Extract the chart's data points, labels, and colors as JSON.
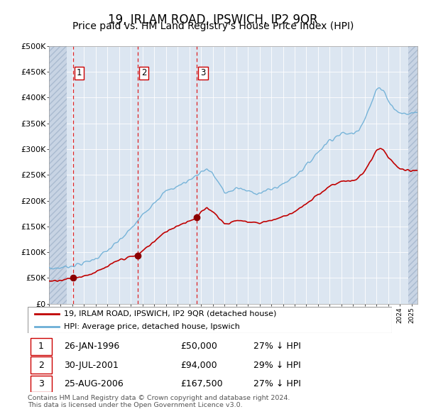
{
  "title": "19, IRLAM ROAD, IPSWICH, IP2 9QR",
  "subtitle": "Price paid vs. HM Land Registry's House Price Index (HPI)",
  "title_fontsize": 12,
  "subtitle_fontsize": 10,
  "ylim": [
    0,
    500000
  ],
  "yticks": [
    0,
    50000,
    100000,
    150000,
    200000,
    250000,
    300000,
    350000,
    400000,
    450000,
    500000
  ],
  "ytick_labels": [
    "£0",
    "£50K",
    "£100K",
    "£150K",
    "£200K",
    "£250K",
    "£300K",
    "£350K",
    "£400K",
    "£450K",
    "£500K"
  ],
  "hpi_color": "#6baed6",
  "price_color": "#c00000",
  "marker_color": "#8b0000",
  "background_color": "#dce6f1",
  "legend_label_price": "19, IRLAM ROAD, IPSWICH, IP2 9QR (detached house)",
  "legend_label_hpi": "HPI: Average price, detached house, Ipswich",
  "transactions": [
    {
      "num": 1,
      "date_label": "26-JAN-1996",
      "price": 50000,
      "pct": "27% ↓ HPI",
      "year": 1996.07
    },
    {
      "num": 2,
      "date_label": "30-JUL-2001",
      "price": 94000,
      "pct": "29% ↓ HPI",
      "year": 2001.58
    },
    {
      "num": 3,
      "date_label": "25-AUG-2006",
      "price": 167500,
      "pct": "27% ↓ HPI",
      "year": 2006.65
    }
  ],
  "footer": "Contains HM Land Registry data © Crown copyright and database right 2024.\nThis data is licensed under the Open Government Licence v3.0.",
  "xmin": 1994,
  "xmax": 2025.5,
  "hatch_left_end": 1995.5,
  "hatch_right_start": 2024.7
}
